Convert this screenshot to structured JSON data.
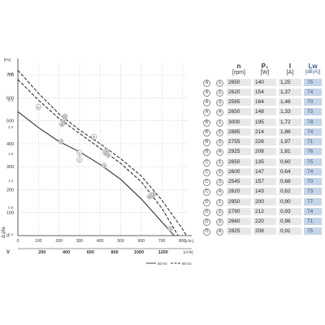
{
  "chart_data": {
    "type": "line",
    "y_axis": {
      "unit": "[Pa]",
      "symbol": "Δ pfa",
      "ticks": [
        0,
        100,
        200,
        300,
        400,
        500,
        600,
        700
      ],
      "ylim": [
        0,
        750
      ]
    },
    "x_axis": {
      "unit": "[cfm]",
      "ticks": [
        0,
        100,
        200,
        300,
        400,
        500,
        600,
        700,
        800
      ],
      "xlim": [
        0,
        830
      ]
    },
    "x_axis_secondary": {
      "symbol": "V",
      "unit": "[m³/h]",
      "ticks": [
        200,
        400,
        600,
        800,
        1000,
        1200
      ]
    },
    "left_axis_inH2O": {
      "unit": "[in H₂O]",
      "ticks": [
        "2.8",
        "2.4",
        "2.0",
        "1.6",
        "1.2",
        "0.8",
        "0.4"
      ]
    },
    "series": [
      {
        "name": "50 Hz",
        "style": "solid",
        "x": [
          0,
          100,
          200,
          300,
          400,
          500,
          600,
          700,
          760
        ],
        "y": [
          540,
          470,
          410,
          365,
          310,
          245,
          160,
          60,
          0
        ]
      },
      {
        "name": "60 Hz",
        "style": "dashed",
        "x": [
          0,
          100,
          200,
          300,
          400,
          500,
          600,
          700,
          800,
          820
        ],
        "y": [
          720,
          620,
          530,
          460,
          400,
          335,
          260,
          155,
          30,
          0
        ]
      },
      {
        "name": "",
        "style": "dashed",
        "x": [
          0,
          100,
          200,
          300,
          400,
          500,
          600,
          700,
          780
        ],
        "y": [
          680,
          590,
          510,
          445,
          380,
          315,
          235,
          120,
          0
        ]
      }
    ],
    "markers": [
      {
        "label": "1",
        "x": 210,
        "y": 410
      },
      {
        "label": "1",
        "x": 420,
        "y": 305
      },
      {
        "label": "1",
        "x": 740,
        "y": 30
      },
      {
        "label": "2",
        "x": 225,
        "y": 500
      },
      {
        "label": "2",
        "x": 425,
        "y": 360
      },
      {
        "label": "2",
        "x": 650,
        "y": 175
      },
      {
        "label": "3",
        "x": 230,
        "y": 520
      },
      {
        "label": "3",
        "x": 430,
        "y": 370
      },
      {
        "label": "3",
        "x": 660,
        "y": 180
      },
      {
        "label": "4",
        "x": 215,
        "y": 485
      },
      {
        "label": "4",
        "x": 440,
        "y": 350
      },
      {
        "label": "4",
        "x": 640,
        "y": 170
      }
    ],
    "curve_labels": [
      {
        "label": "A",
        "x": 100,
        "y": 560
      },
      {
        "label": "B",
        "x": 370,
        "y": 430
      },
      {
        "label": "C",
        "x": 300,
        "y": 330
      },
      {
        "label": "D",
        "x": 300,
        "y": 360
      }
    ],
    "legend": [
      {
        "label": "50 Hz",
        "style": "solid"
      },
      {
        "label": "60 Hz",
        "style": "dashed"
      }
    ],
    "legend_position": "bottom-right"
  },
  "table": {
    "headers": {
      "n": "n",
      "n_unit": "[rpm]",
      "p": "P₁",
      "p_unit": "[W]",
      "i": "I",
      "i_unit": "[A]",
      "lw": "Lw",
      "lw_unit": "[dB(A)]"
    },
    "rows": [
      {
        "letter": "A",
        "mark": "1",
        "n": "2650",
        "p": "140",
        "i": "1,25",
        "lw": "75"
      },
      {
        "letter": "A",
        "mark": "2",
        "n": "2620",
        "p": "154",
        "i": "1,37",
        "lw": "74"
      },
      {
        "letter": "A",
        "mark": "3",
        "n": "2565",
        "p": "164",
        "i": "1,46",
        "lw": "70"
      },
      {
        "letter": "A",
        "mark": "4",
        "n": "2650",
        "p": "148",
        "i": "1,33",
        "lw": "73"
      },
      {
        "letter": "B",
        "mark": "1",
        "n": "3000",
        "p": "195",
        "i": "1,72",
        "lw": "78"
      },
      {
        "letter": "B",
        "mark": "2",
        "n": "2885",
        "p": "214",
        "i": "1,86",
        "lw": "74"
      },
      {
        "letter": "B",
        "mark": "3",
        "n": "2755",
        "p": "226",
        "i": "1,97",
        "lw": "71"
      },
      {
        "letter": "B",
        "mark": "4",
        "n": "2925",
        "p": "208",
        "i": "1,81",
        "lw": "76"
      },
      {
        "letter": "C",
        "mark": "1",
        "n": "2650",
        "p": "135",
        "i": "0,60",
        "lw": "75"
      },
      {
        "letter": "C",
        "mark": "2",
        "n": "2600",
        "p": "147",
        "i": "0,64",
        "lw": "74"
      },
      {
        "letter": "C",
        "mark": "3",
        "n": "2545",
        "p": "157",
        "i": "0,68",
        "lw": "70"
      },
      {
        "letter": "C",
        "mark": "4",
        "n": "2620",
        "p": "143",
        "i": "0,62",
        "lw": "73"
      },
      {
        "letter": "D",
        "mark": "1",
        "n": "2950",
        "p": "200",
        "i": "0,90",
        "lw": "77"
      },
      {
        "letter": "D",
        "mark": "2",
        "n": "2790",
        "p": "212",
        "i": "0,93",
        "lw": "74"
      },
      {
        "letter": "D",
        "mark": "3",
        "n": "2660",
        "p": "220",
        "i": "0,96",
        "lw": "71"
      },
      {
        "letter": "D",
        "mark": "4",
        "n": "2825",
        "p": "208",
        "i": "0,91",
        "lw": "75"
      }
    ]
  },
  "colors": {
    "curve": "#333333",
    "grid": "#cccccc",
    "lw_cell": "#c5d5e8",
    "lw_text": "#3a5a86",
    "cell": "#e8e8e8",
    "marker_fill": "#dddddd"
  }
}
